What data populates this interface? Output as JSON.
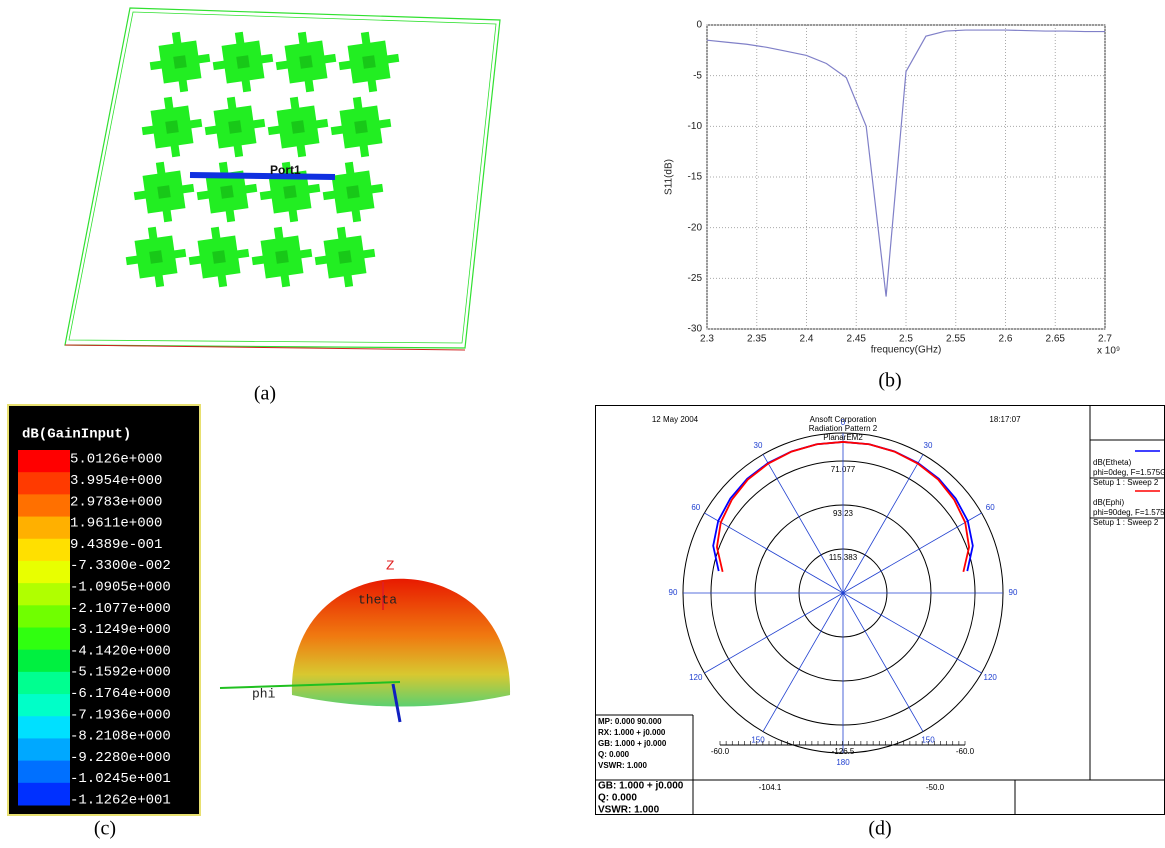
{
  "figure": {
    "captions": [
      "(a)",
      "(b)",
      "(c)",
      "(d)"
    ],
    "port_label": "Port1",
    "colorbar": {
      "title": "dB(GainInput)",
      "labels": [
        "5.0126e+000",
        "3.9954e+000",
        "2.9783e+000",
        "1.9611e+000",
        "9.4389e-001",
        "-7.3300e-002",
        "-1.0905e+000",
        "-2.1077e+000",
        "-3.1249e+000",
        "-4.1420e+000",
        "-5.1592e+000",
        "-6.1764e+000",
        "-7.1936e+000",
        "-8.2108e+000",
        "-9.2280e+000",
        "-1.0245e+001",
        "-1.1262e+001"
      ],
      "colors": [
        "#ff0000",
        "#ff3a00",
        "#ff7000",
        "#ffb000",
        "#ffe000",
        "#e8ff00",
        "#b0ff00",
        "#70ff00",
        "#30ff10",
        "#00f040",
        "#00ff90",
        "#00ffc8",
        "#00e0ff",
        "#00a8ff",
        "#0070ff",
        "#0030ff"
      ]
    },
    "axes_3d": {
      "z": "Z",
      "theta": "theta",
      "phi": "phi"
    },
    "pattern_box": {
      "info": [
        "MP: 0.000  90.000",
        "RX: 1.000 + j0.000",
        "GB: 1.000 + j0.000",
        "Q: 0.000",
        "VSWR: 1.000"
      ],
      "footer": [
        "GB: 1.000 + j0.000",
        "Q: 0.000",
        "VSWR: 1.000"
      ],
      "scale_labels": [
        "-60.0",
        "-126.5",
        "-60.0"
      ],
      "footer_values": [
        "-104.1",
        "-50.0"
      ]
    }
  },
  "chart_data": [
    {
      "type": "line",
      "x_label": "frequency(GHz)",
      "y_label": "S11(dB)",
      "x_scale_label": "x 10⁹",
      "x": [
        2.3,
        2.32,
        2.34,
        2.36,
        2.38,
        2.4,
        2.42,
        2.44,
        2.46,
        2.48,
        2.5,
        2.52,
        2.54,
        2.56,
        2.58,
        2.6,
        2.62,
        2.64,
        2.66,
        2.68,
        2.7
      ],
      "series": [
        {
          "color": "#8080c8",
          "values": [
            -1.5,
            -1.7,
            -1.9,
            -2.2,
            -2.6,
            -3.0,
            -3.8,
            -5.2,
            -10,
            -26.8,
            -4.6,
            -1.1,
            -0.6,
            -0.5,
            -0.5,
            -0.5,
            -0.55,
            -0.6,
            -0.6,
            -0.65,
            -0.65
          ]
        }
      ],
      "xlim": [
        2.3,
        2.7
      ],
      "xticks": [
        2.3,
        2.35,
        2.4,
        2.45,
        2.5,
        2.55,
        2.6,
        2.65,
        2.7
      ],
      "ylim": [
        -30,
        0
      ],
      "yticks": [
        0,
        -5,
        -10,
        -15,
        -20,
        -25,
        -30
      ],
      "grid": true
    },
    {
      "type": "polar",
      "date": "12 May 2004",
      "time": "18:17:07",
      "title_lines": [
        "Ansoft Corporation",
        "Radiation Pattern 2",
        "PlanarEM2"
      ],
      "theta": [
        -80,
        -70,
        -60,
        -50,
        -40,
        -30,
        -20,
        -10,
        0,
        10,
        20,
        30,
        40,
        50,
        60,
        70,
        80
      ],
      "series": [
        {
          "name": "dB(Etheta)",
          "detail": [
            "phi=0deg, F=1.575G",
            "Setup 1 : Sweep 2"
          ],
          "color": "#0000ff",
          "values": [
            74,
            68,
            65,
            63.5,
            62.5,
            62,
            61.7,
            61.5,
            61.5,
            61.5,
            61.7,
            62,
            62.5,
            63.5,
            65,
            68,
            74
          ]
        },
        {
          "name": "dB(Ephi)",
          "detail": [
            "phi=90deg, F=1.575",
            "Setup 1 : Sweep 2"
          ],
          "color": "#ff0000",
          "values": [
            76,
            70,
            66.5,
            64.5,
            63,
            62.3,
            61.8,
            61.5,
            61.5,
            61.5,
            61.8,
            62.3,
            63,
            64.5,
            66.5,
            70,
            76
          ]
        }
      ],
      "rlim": [
        137.5,
        57
      ],
      "rticks": [
        71.077,
        93.23,
        115.383
      ],
      "thetaticks": [
        0,
        30,
        60,
        90,
        120,
        150,
        180,
        {
          "value": -150,
          "label": "150"
        },
        {
          "value": -120,
          "label": "120"
        },
        {
          "value": -90,
          "label": "90"
        },
        {
          "value": -60,
          "label": "60"
        },
        {
          "value": -30,
          "label": "30"
        }
      ]
    }
  ]
}
